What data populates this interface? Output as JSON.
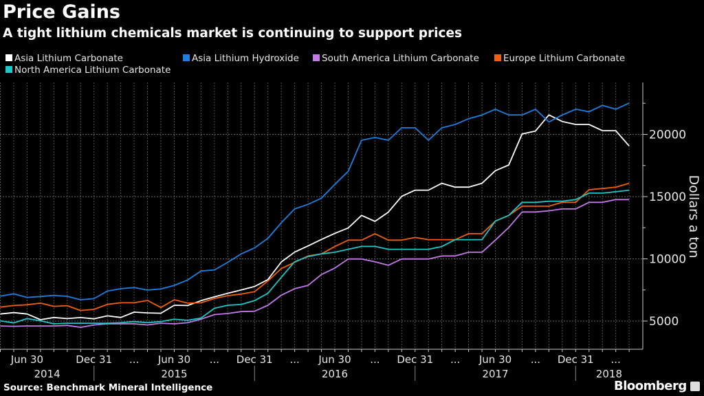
{
  "chart_data": {
    "type": "line",
    "title": "Price Gains",
    "subtitle": "A tight lithium chemicals market is continuing to support prices",
    "ylabel": "Dollars a ton",
    "ylim": [
      2735,
      24170
    ],
    "y_ticks": [
      5000,
      10000,
      15000,
      20000
    ],
    "y_tick_labels": [
      "5000",
      "10000",
      "15000",
      "20000"
    ],
    "grid": true,
    "legend_placement": "top-left",
    "x_ticks": [
      {
        "label": "Jun 30",
        "index": 2
      },
      {
        "label": "Dec 31",
        "index": 7
      },
      {
        "label": "...",
        "index": 10
      },
      {
        "label": "Jun 30",
        "index": 13
      },
      {
        "label": "...",
        "index": 16
      },
      {
        "label": "Dec 31",
        "index": 19
      },
      {
        "label": "...",
        "index": 22
      },
      {
        "label": "Jun 30",
        "index": 25
      },
      {
        "label": "...",
        "index": 28
      },
      {
        "label": "Dec 31",
        "index": 31
      },
      {
        "label": "...",
        "index": 34
      },
      {
        "label": "Jun 30",
        "index": 37
      },
      {
        "label": "...",
        "index": 40
      },
      {
        "label": "Dec 31",
        "index": 43
      },
      {
        "label": "...",
        "index": 46
      }
    ],
    "years": [
      {
        "label": "2014",
        "index": 3.5
      },
      {
        "label": "2015",
        "index": 13
      },
      {
        "label": "2016",
        "index": 25
      },
      {
        "label": "2017",
        "index": 37
      },
      {
        "label": "2018",
        "index": 45.5
      }
    ],
    "year_separators": [
      7,
      19,
      31,
      43
    ],
    "series": [
      {
        "name": "Asia Lithium Carbonate",
        "color": "#ffffff",
        "values": [
          5570,
          5680,
          5570,
          5110,
          5290,
          5200,
          5280,
          5180,
          5420,
          5290,
          5720,
          5660,
          5630,
          6270,
          6250,
          6640,
          6950,
          7230,
          7500,
          7780,
          8330,
          9750,
          10540,
          11040,
          11560,
          12050,
          12480,
          13490,
          13010,
          13750,
          15020,
          15520,
          15520,
          16070,
          15760,
          15760,
          16070,
          17080,
          17540,
          20030,
          20270,
          21560,
          21040,
          20800,
          20800,
          20300,
          20300,
          19070
        ]
      },
      {
        "name": "Asia Lithium Hydroxide",
        "color": "#1f7fe0",
        "values": [
          7000,
          7190,
          6900,
          6970,
          7060,
          6990,
          6710,
          6800,
          7410,
          7600,
          7690,
          7490,
          7580,
          7870,
          8300,
          9020,
          9110,
          9720,
          10400,
          10880,
          11650,
          12900,
          14010,
          14380,
          14870,
          15980,
          17030,
          19530,
          19750,
          19530,
          20530,
          20530,
          19530,
          20530,
          20800,
          21260,
          21560,
          22020,
          21560,
          21560,
          22020,
          21000,
          21560,
          22020,
          21820,
          22330,
          22020,
          22520
        ]
      },
      {
        "name": "South America Lithium Carbonate",
        "color": "#c27ae8",
        "values": [
          4610,
          4580,
          4610,
          4610,
          4610,
          4650,
          4500,
          4690,
          4780,
          4780,
          4780,
          4690,
          4830,
          4780,
          4870,
          5150,
          5520,
          5610,
          5760,
          5790,
          6270,
          7080,
          7600,
          7870,
          8740,
          9260,
          9990,
          9990,
          9770,
          9480,
          9990,
          9990,
          9990,
          10230,
          10230,
          10530,
          10530,
          11500,
          12520,
          13770,
          13770,
          13860,
          14010,
          14010,
          14540,
          14540,
          14760,
          14760
        ]
      },
      {
        "name": "Europe Lithium Carbonate",
        "color": "#f0600c",
        "values": [
          6120,
          6250,
          6310,
          6440,
          6180,
          6240,
          5850,
          5940,
          6340,
          6470,
          6470,
          6660,
          6090,
          6710,
          6440,
          6470,
          6820,
          7040,
          7170,
          7360,
          8220,
          9220,
          9720,
          10230,
          10400,
          10990,
          11500,
          11500,
          12020,
          11500,
          11500,
          11720,
          11540,
          11540,
          11540,
          12020,
          12020,
          13030,
          13490,
          14230,
          14230,
          14230,
          14540,
          14540,
          15550,
          15650,
          15760,
          16070
        ]
      },
      {
        "name": "North America Lithium Carbonate",
        "color": "#1ec8c8",
        "values": [
          5020,
          4850,
          5200,
          5020,
          4780,
          4830,
          4830,
          4830,
          4830,
          4870,
          4960,
          4870,
          4960,
          5150,
          5060,
          5240,
          6030,
          6270,
          6330,
          6640,
          7230,
          8520,
          9770,
          10180,
          10400,
          10530,
          10770,
          11000,
          11000,
          10770,
          10770,
          10770,
          10770,
          10990,
          11540,
          11540,
          11540,
          13030,
          13490,
          14540,
          14540,
          14630,
          14630,
          14760,
          15280,
          15280,
          15390,
          15520
        ]
      }
    ]
  },
  "legend_order": [
    0,
    1,
    2,
    3,
    4
  ],
  "footer": {
    "source": "Source: Benchmark Mineral Intelligence",
    "brand": "Bloomberg"
  }
}
